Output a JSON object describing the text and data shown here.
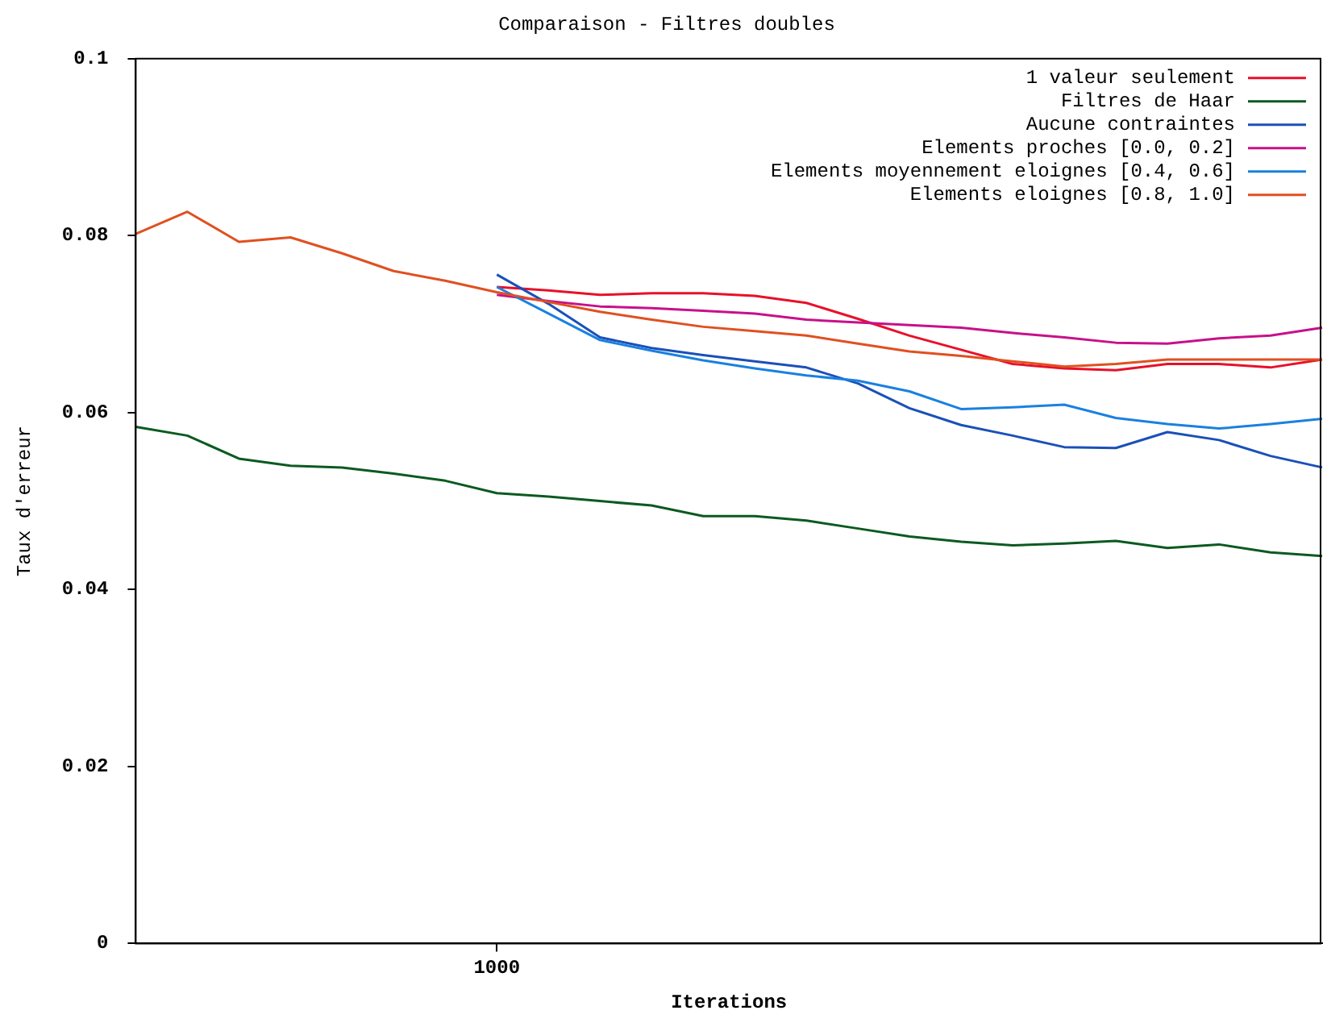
{
  "chart_data": {
    "type": "line",
    "title": "Comparaison - Filtres doubles",
    "xlabel": "Iterations",
    "ylabel": "Taux d'erreur",
    "grid": false,
    "legend": "top right",
    "marker": "none",
    "line_style": "solid",
    "categories": [
      null,
      null,
      null,
      null,
      null,
      null,
      null,
      "1000",
      null,
      null,
      null,
      null,
      null,
      null,
      null,
      null,
      null,
      null,
      null,
      null,
      null,
      null,
      null,
      null
    ],
    "ylim": [
      0,
      0.1
    ],
    "yticks": [
      0,
      0.02,
      0.04,
      0.06,
      0.08,
      0.1
    ],
    "series": [
      {
        "name": "1 valeur seulement",
        "color": "#e8102a",
        "values": [
          null,
          null,
          null,
          null,
          null,
          null,
          null,
          0.0742,
          0.0738,
          0.0733,
          0.0735,
          0.0735,
          0.0732,
          0.0724,
          0.0706,
          0.0687,
          0.0671,
          0.0655,
          0.065,
          0.0648,
          0.0655,
          0.0655,
          0.0651,
          0.066
        ]
      },
      {
        "name": "Filtres de Haar",
        "color": "#0b5a20",
        "values": [
          0.0584,
          0.0574,
          0.0548,
          0.054,
          0.0538,
          0.0531,
          0.0523,
          0.0509,
          0.0505,
          0.05,
          0.0495,
          0.0483,
          0.0483,
          0.0478,
          0.0469,
          0.046,
          0.0454,
          0.045,
          0.0452,
          0.0455,
          0.0447,
          0.0451,
          0.0442,
          0.0438
        ]
      },
      {
        "name": "Aucune contraintes",
        "color": "#1a50b8",
        "values": [
          null,
          null,
          null,
          null,
          null,
          null,
          null,
          0.0756,
          0.0723,
          0.0685,
          0.0673,
          0.0665,
          0.0658,
          0.0651,
          0.0633,
          0.0605,
          0.0586,
          0.0574,
          0.0561,
          0.056,
          0.0578,
          0.0569,
          0.0551,
          0.0538
        ]
      },
      {
        "name": "Elements proches [0.0, 0.2]",
        "color": "#c8108a",
        "values": [
          null,
          null,
          null,
          null,
          null,
          null,
          null,
          0.0733,
          0.0726,
          0.072,
          0.0718,
          0.0715,
          0.0712,
          0.0705,
          0.0702,
          0.0699,
          0.0696,
          0.069,
          0.0685,
          0.0679,
          0.0678,
          0.0684,
          0.0687,
          0.0696
        ]
      },
      {
        "name": "Elements moyennement eloignes [0.4, 0.6]",
        "color": "#1a80e0",
        "values": [
          null,
          null,
          null,
          null,
          null,
          null,
          null,
          0.0742,
          0.0712,
          0.0682,
          0.067,
          0.0659,
          0.065,
          0.0642,
          0.0636,
          0.0624,
          0.0604,
          0.0606,
          0.0609,
          0.0594,
          0.0587,
          0.0582,
          0.0587,
          0.0593
        ]
      },
      {
        "name": "Elements eloignes [0.8, 1.0]",
        "color": "#e05020",
        "values": [
          0.0802,
          0.0827,
          0.0793,
          0.0798,
          0.078,
          0.076,
          0.0749,
          0.0736,
          0.0725,
          0.0714,
          0.0705,
          0.0697,
          0.0692,
          0.0687,
          0.0678,
          0.0669,
          0.0664,
          0.0658,
          0.0652,
          0.0655,
          0.066,
          0.066,
          0.066,
          0.066
        ]
      }
    ]
  }
}
